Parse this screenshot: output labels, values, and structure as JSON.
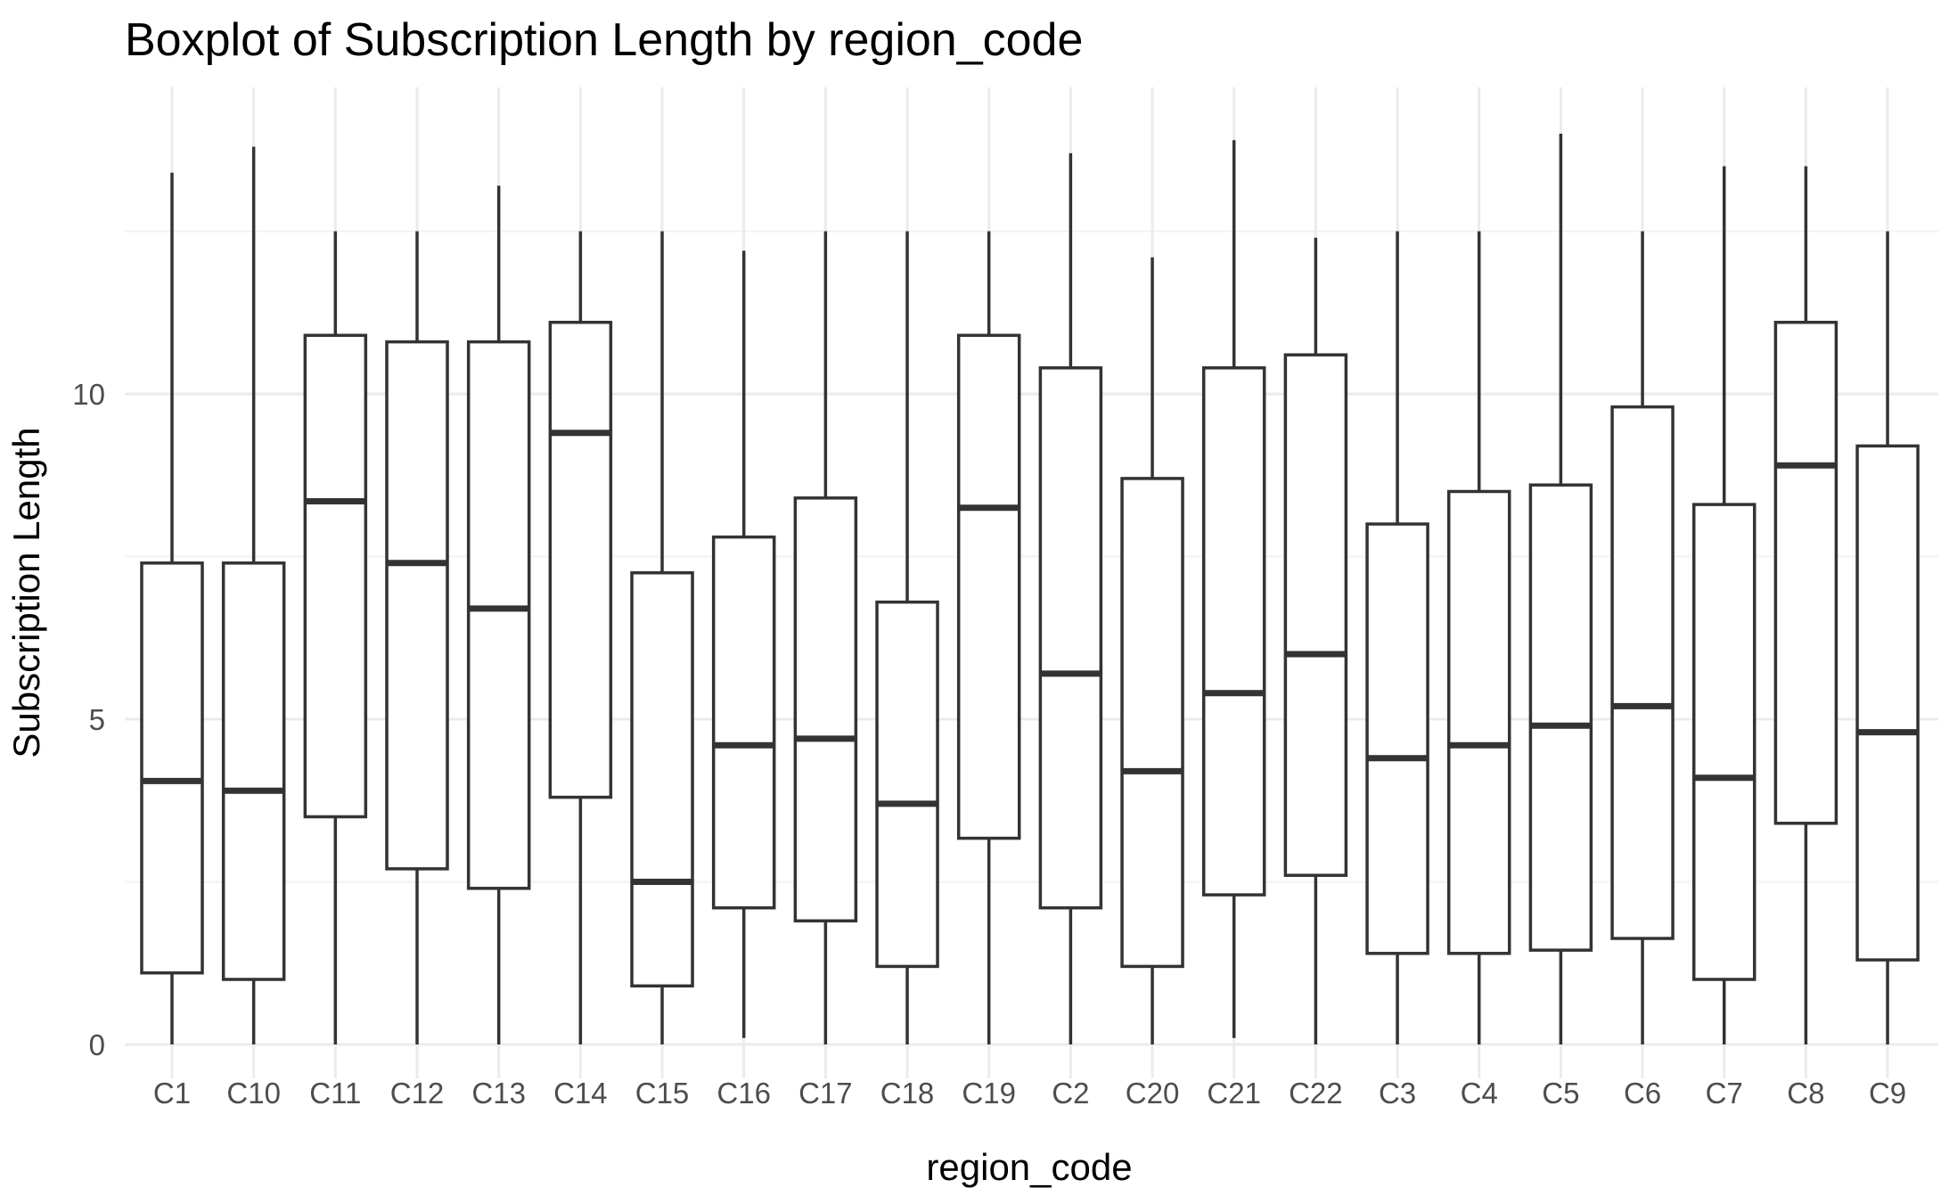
{
  "chart_data": {
    "type": "boxplot",
    "title": "Boxplot of Subscription Length by region_code",
    "xlabel": "region_code",
    "ylabel": "Subscription Length",
    "ylim": [
      -0.6,
      14.8
    ],
    "yticks": [
      0,
      5,
      10
    ],
    "grid": true,
    "categories": [
      "C1",
      "C10",
      "C11",
      "C12",
      "C13",
      "C14",
      "C15",
      "C16",
      "C17",
      "C18",
      "C19",
      "C2",
      "C20",
      "C21",
      "C22",
      "C3",
      "C4",
      "C5",
      "C6",
      "C7",
      "C8",
      "C9"
    ],
    "boxes": [
      {
        "category": "C1",
        "min": 0,
        "q1": 1.1,
        "median": 4.05,
        "q3": 7.4,
        "max": 13.4
      },
      {
        "category": "C10",
        "min": 0,
        "q1": 1.0,
        "median": 3.9,
        "q3": 7.4,
        "max": 13.8
      },
      {
        "category": "C11",
        "min": 0,
        "q1": 3.5,
        "median": 8.35,
        "q3": 10.9,
        "max": 12.5
      },
      {
        "category": "C12",
        "min": 0,
        "q1": 2.7,
        "median": 7.4,
        "q3": 10.8,
        "max": 12.5
      },
      {
        "category": "C13",
        "min": 0,
        "q1": 2.4,
        "median": 6.7,
        "q3": 10.8,
        "max": 13.2
      },
      {
        "category": "C14",
        "min": 0,
        "q1": 3.8,
        "median": 9.4,
        "q3": 11.1,
        "max": 12.5
      },
      {
        "category": "C15",
        "min": 0,
        "q1": 0.9,
        "median": 2.5,
        "q3": 7.25,
        "max": 12.5
      },
      {
        "category": "C16",
        "min": 0.1,
        "q1": 2.1,
        "median": 4.6,
        "q3": 7.8,
        "max": 12.2
      },
      {
        "category": "C17",
        "min": 0,
        "q1": 1.9,
        "median": 4.7,
        "q3": 8.4,
        "max": 12.5
      },
      {
        "category": "C18",
        "min": 0,
        "q1": 1.2,
        "median": 3.7,
        "q3": 6.8,
        "max": 12.5
      },
      {
        "category": "C19",
        "min": 0,
        "q1": 3.17,
        "median": 8.25,
        "q3": 10.9,
        "max": 12.5
      },
      {
        "category": "C2",
        "min": 0,
        "q1": 2.1,
        "median": 5.7,
        "q3": 10.4,
        "max": 13.7
      },
      {
        "category": "C20",
        "min": 0,
        "q1": 1.2,
        "median": 4.2,
        "q3": 8.7,
        "max": 12.1
      },
      {
        "category": "C21",
        "min": 0.1,
        "q1": 2.3,
        "median": 5.4,
        "q3": 10.4,
        "max": 13.9
      },
      {
        "category": "C22",
        "min": 0,
        "q1": 2.6,
        "median": 6.0,
        "q3": 10.6,
        "max": 12.4
      },
      {
        "category": "C3",
        "min": 0,
        "q1": 1.4,
        "median": 4.4,
        "q3": 8.0,
        "max": 12.5
      },
      {
        "category": "C4",
        "min": 0,
        "q1": 1.4,
        "median": 4.6,
        "q3": 8.5,
        "max": 12.5
      },
      {
        "category": "C5",
        "min": 0,
        "q1": 1.45,
        "median": 4.9,
        "q3": 8.6,
        "max": 14.0
      },
      {
        "category": "C6",
        "min": 0,
        "q1": 1.63,
        "median": 5.2,
        "q3": 9.8,
        "max": 12.5
      },
      {
        "category": "C7",
        "min": 0,
        "q1": 1.0,
        "median": 4.1,
        "q3": 8.3,
        "max": 13.5
      },
      {
        "category": "C8",
        "min": 0,
        "q1": 3.4,
        "median": 8.9,
        "q3": 11.1,
        "max": 13.5
      },
      {
        "category": "C9",
        "min": 0,
        "q1": 1.3,
        "median": 4.8,
        "q3": 9.2,
        "max": 12.5
      }
    ],
    "colors": {
      "box_outline": "#333333",
      "box_fill": "#ffffff",
      "grid": "#ebebeb",
      "tick_text": "#4d4d4d"
    }
  }
}
